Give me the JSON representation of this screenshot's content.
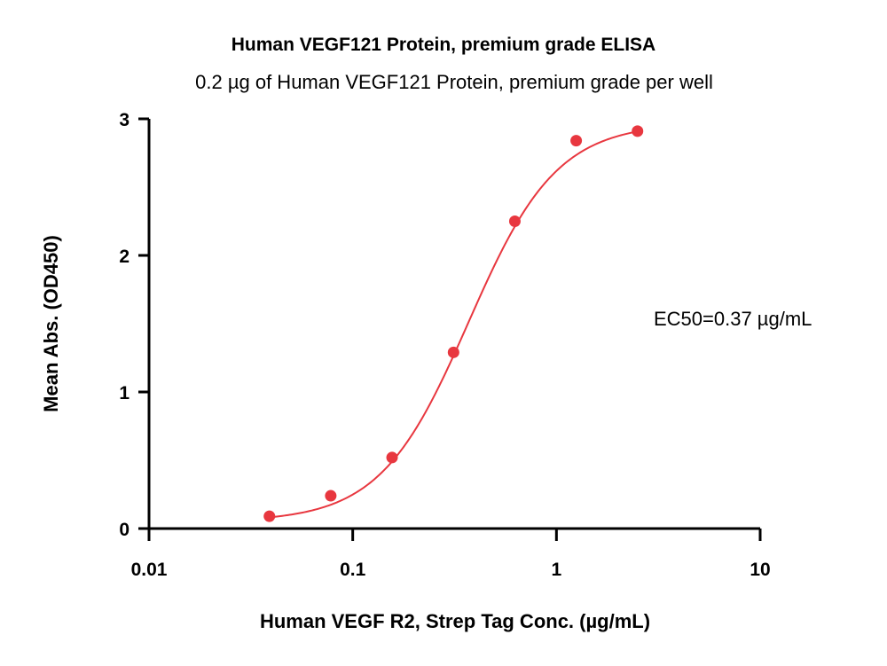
{
  "chart_data": {
    "type": "scatter",
    "title": "Human VEGF121 Protein, premium grade ELISA",
    "subtitle": "0.2 µg of Human VEGF121 Protein, premium grade per well",
    "xlabel": "Human VEGF R2, Strep Tag Conc. (µg/mL)",
    "ylabel": "Mean Abs. (OD450)",
    "x_scale": "log",
    "xlim": [
      0.01,
      10
    ],
    "ylim": [
      0,
      3
    ],
    "x_ticks": [
      0.01,
      0.1,
      1,
      10
    ],
    "x_tick_labels": [
      "0.01",
      "0.1",
      "1",
      "10"
    ],
    "y_ticks": [
      0,
      1,
      2,
      3
    ],
    "y_tick_labels": [
      "0",
      "1",
      "2",
      "3"
    ],
    "series": [
      {
        "x": [
          0.039,
          0.078,
          0.156,
          0.3125,
          0.625,
          1.25,
          2.5
        ],
        "y": [
          0.09,
          0.24,
          0.52,
          1.29,
          2.25,
          2.84,
          2.91
        ]
      }
    ],
    "fit_curve": {
      "model": "4PL",
      "bottom": 0.05,
      "top": 2.97,
      "ec50": 0.37,
      "hill": 2.0
    },
    "annotation": "EC50=0.37 µg/mL",
    "color": "#e8373f",
    "grid": false,
    "legend": "none"
  }
}
